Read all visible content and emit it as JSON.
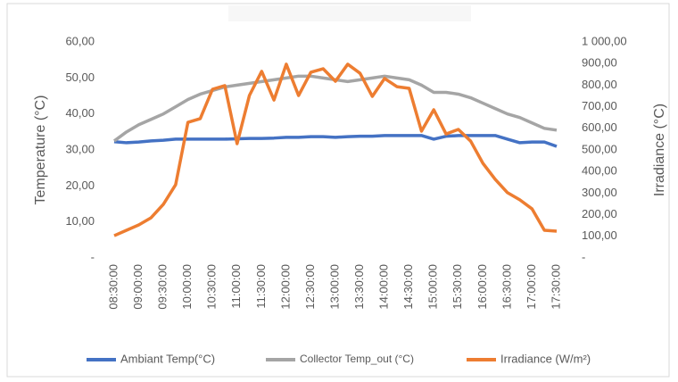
{
  "chart_data": {
    "type": "line",
    "categories": [
      "08:30:00",
      null,
      "09:00:00",
      null,
      "09:30:00",
      null,
      "10:00:00",
      null,
      "10:30:00",
      null,
      "11:00:00",
      null,
      "11:30:00",
      null,
      "12:00:00",
      null,
      "12:30:00",
      null,
      "13:00:00",
      null,
      "13:30:00",
      null,
      "14:00:00",
      null,
      "14:30:00",
      null,
      "15:00:00",
      null,
      "15:30:00",
      null,
      "16:00:00",
      null,
      "16:30:00",
      null,
      "17:00:00",
      null,
      "17:30:00"
    ],
    "y_label": "Temperature (°C)",
    "y2_label": "Irradiance (°C)",
    "ylim": [
      0,
      60
    ],
    "yticks": [
      {
        "value": 0,
        "label": "-"
      },
      {
        "value": 10,
        "label": "10,00"
      },
      {
        "value": 20,
        "label": "20,00"
      },
      {
        "value": 30,
        "label": "30,00"
      },
      {
        "value": 40,
        "label": "40,00"
      },
      {
        "value": 50,
        "label": "50,00"
      },
      {
        "value": 60,
        "label": "60,00"
      }
    ],
    "y2lim": [
      0,
      1000
    ],
    "y2ticks": [
      {
        "value": 0,
        "label": "-"
      },
      {
        "value": 100,
        "label": "100,00"
      },
      {
        "value": 200,
        "label": "200,00"
      },
      {
        "value": 300,
        "label": "300,00"
      },
      {
        "value": 400,
        "label": "400,00"
      },
      {
        "value": 500,
        "label": "500,00"
      },
      {
        "value": 600,
        "label": "600,00"
      },
      {
        "value": 700,
        "label": "700,00"
      },
      {
        "value": 800,
        "label": "800,00"
      },
      {
        "value": 900,
        "label": "900,00"
      },
      {
        "value": 1000,
        "label": "1 000,00"
      }
    ],
    "grid": false,
    "legend": "bottom",
    "series": [
      {
        "name": "Ambiant Temp(°C)",
        "color": "#4472c4",
        "values": [
          32.3,
          32,
          32.2,
          32.5,
          32.7,
          33,
          33,
          33,
          33,
          33,
          33.1,
          33.2,
          33.2,
          33.3,
          33.5,
          33.5,
          33.7,
          33.7,
          33.5,
          33.7,
          33.8,
          33.8,
          34,
          34,
          34,
          34,
          33,
          33.8,
          34,
          34,
          34,
          34,
          33,
          32,
          32.2,
          32.2,
          31
        ]
      },
      {
        "name": "Collector Temp_out (°C)",
        "color": "#a5a5a5",
        "values": [
          32.5,
          35,
          37,
          38.5,
          40,
          42,
          44,
          45.5,
          46.5,
          47.5,
          48,
          48.5,
          49,
          49.5,
          50,
          50.5,
          50.5,
          50,
          49.5,
          49,
          49.5,
          50,
          50.5,
          50,
          49.5,
          48,
          46,
          46,
          45.5,
          44.5,
          43,
          41.5,
          40,
          39,
          37.5,
          36,
          35.5
        ]
      },
      {
        "name": "Irradiance (W/m²)",
        "color": "#ed7d31",
        "axis": "y2",
        "values": [
          103,
          128,
          153,
          186,
          248,
          339,
          628,
          645,
          781,
          798,
          529,
          752,
          864,
          731,
          897,
          752,
          860,
          876,
          818,
          897,
          855,
          748,
          831,
          793,
          785,
          587,
          686,
          574,
          595,
          541,
          438,
          364,
          302,
          269,
          227,
          128,
          124
        ]
      }
    ]
  }
}
